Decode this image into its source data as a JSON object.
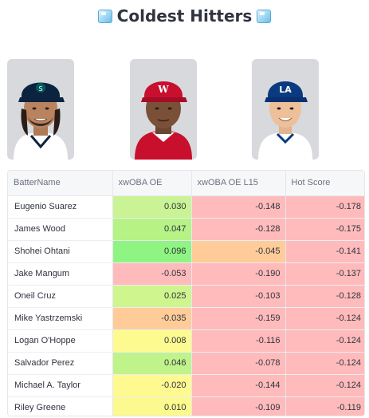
{
  "title": "Coldest Hitters",
  "players": [
    {
      "name": "Eugenio Suarez",
      "cap_color": "#0c2340",
      "logo": "S",
      "logo_color": "#005c5c"
    },
    {
      "name": "James Wood",
      "cap_color": "#c8102e",
      "logo": "W",
      "logo_color": "#ffffff"
    },
    {
      "name": "Shohei Ohtani",
      "cap_color": "#0a3a80",
      "logo": "LA",
      "logo_color": "#ffffff"
    }
  ],
  "table": {
    "columns": [
      "BatterName",
      "xwOBA OE",
      "xwOBA OE L15",
      "Hot Score"
    ],
    "rows": [
      {
        "name": "Eugenio Suarez",
        "xwoba_oe": "0.030",
        "xwoba_oe_l15": "-0.148",
        "hot_score": "-0.178",
        "colors": [
          "#c9f394",
          "#ffbbbb",
          "#ffbbbb"
        ]
      },
      {
        "name": "James Wood",
        "xwoba_oe": "0.047",
        "xwoba_oe_l15": "-0.128",
        "hot_score": "-0.175",
        "colors": [
          "#b6f286",
          "#ffbbbb",
          "#ffbbbb"
        ]
      },
      {
        "name": "Shohei Ohtani",
        "xwoba_oe": "0.096",
        "xwoba_oe_l15": "-0.045",
        "hot_score": "-0.141",
        "colors": [
          "#8ef582",
          "#ffcc99",
          "#ffbbbb"
        ]
      },
      {
        "name": "Jake Mangum",
        "xwoba_oe": "-0.053",
        "xwoba_oe_l15": "-0.190",
        "hot_score": "-0.137",
        "colors": [
          "#ffbbbb",
          "#ffbbbb",
          "#ffbbbb"
        ]
      },
      {
        "name": "Oneil Cruz",
        "xwoba_oe": "0.025",
        "xwoba_oe_l15": "-0.103",
        "hot_score": "-0.128",
        "colors": [
          "#cff58e",
          "#ffbbbb",
          "#ffbbbb"
        ]
      },
      {
        "name": "Mike Yastrzemski",
        "xwoba_oe": "-0.035",
        "xwoba_oe_l15": "-0.159",
        "hot_score": "-0.124",
        "colors": [
          "#ffcc99",
          "#ffbbbb",
          "#ffbbbb"
        ]
      },
      {
        "name": "Logan O'Hoppe",
        "xwoba_oe": "0.008",
        "xwoba_oe_l15": "-0.116",
        "hot_score": "-0.124",
        "colors": [
          "#fdfb90",
          "#ffbbbb",
          "#ffbbbb"
        ]
      },
      {
        "name": "Salvador Perez",
        "xwoba_oe": "0.046",
        "xwoba_oe_l15": "-0.078",
        "hot_score": "-0.124",
        "colors": [
          "#c0f38a",
          "#ffbbbb",
          "#ffbbbb"
        ]
      },
      {
        "name": "Michael A. Taylor",
        "xwoba_oe": "-0.020",
        "xwoba_oe_l15": "-0.144",
        "hot_score": "-0.124",
        "colors": [
          "#fefa90",
          "#ffbbbb",
          "#ffbbbb"
        ]
      },
      {
        "name": "Riley Greene",
        "xwoba_oe": "0.010",
        "xwoba_oe_l15": "-0.109",
        "hot_score": "-0.119",
        "colors": [
          "#fcf98e",
          "#ffbbbb",
          "#ffbbbb"
        ]
      }
    ]
  }
}
